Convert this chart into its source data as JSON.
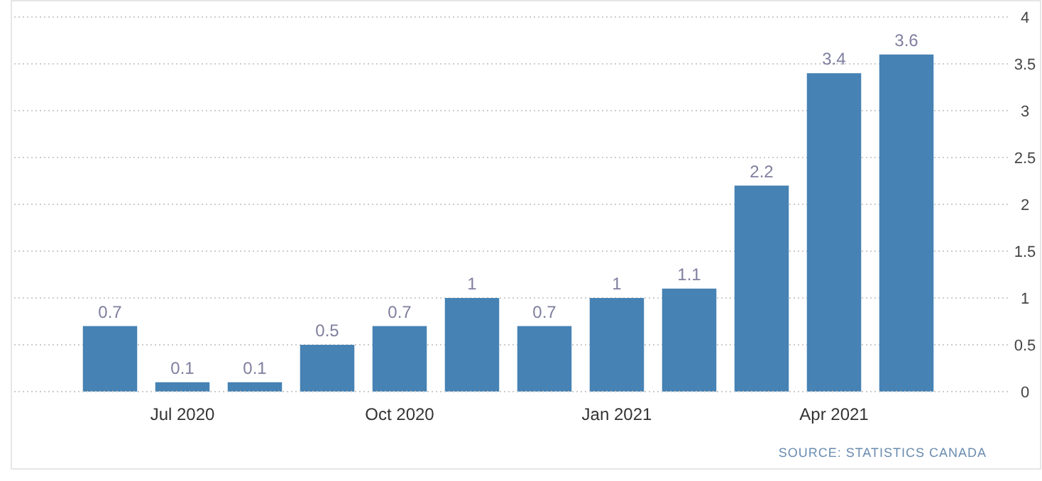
{
  "chart_data": {
    "type": "bar",
    "categories": [
      null,
      "Jul 2020",
      null,
      null,
      "Oct 2020",
      null,
      null,
      "Jan 2021",
      null,
      null,
      "Apr 2021",
      null
    ],
    "values": [
      0.7,
      0.1,
      0.1,
      0.5,
      0.7,
      1,
      0.7,
      1,
      1.1,
      2.2,
      3.4,
      3.6
    ],
    "color": "#4682b4",
    "ylim": [
      0,
      4
    ],
    "yticks": [
      0,
      0.5,
      1,
      1.5,
      2,
      2.5,
      3,
      3.5,
      4
    ],
    "grid": "y",
    "data_labels": true,
    "annotations": [
      "SOURCE: STATISTICS CANADA"
    ]
  }
}
